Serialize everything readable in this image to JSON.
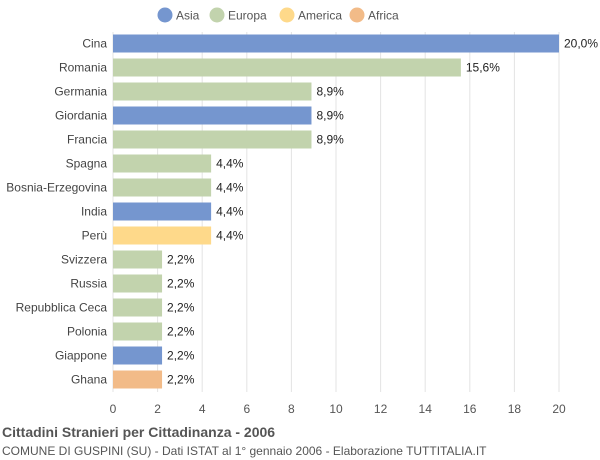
{
  "chart_data": {
    "type": "bar",
    "orientation": "horizontal",
    "title": "Cittadini Stranieri per Cittadinanza - 2006",
    "subtitle": "COMUNE DI GUSPINI (SU) - Dati ISTAT al 1° gennaio 2006 - Elaborazione TUTTITALIA.IT",
    "xlim": [
      0,
      20
    ],
    "xticks": [
      0,
      2,
      4,
      6,
      8,
      10,
      12,
      14,
      16,
      18,
      20
    ],
    "grid": true,
    "legend_position": "top",
    "legend": [
      {
        "name": "Asia",
        "color": "#7596cf"
      },
      {
        "name": "Europa",
        "color": "#c2d3ad"
      },
      {
        "name": "America",
        "color": "#fed98a"
      },
      {
        "name": "Africa",
        "color": "#f2bb88"
      }
    ],
    "bars": [
      {
        "category": "Cina",
        "value": 20.0,
        "label": "20,0%",
        "group": "Asia"
      },
      {
        "category": "Romania",
        "value": 15.6,
        "label": "15,6%",
        "group": "Europa"
      },
      {
        "category": "Germania",
        "value": 8.9,
        "label": "8,9%",
        "group": "Europa"
      },
      {
        "category": "Giordania",
        "value": 8.9,
        "label": "8,9%",
        "group": "Asia"
      },
      {
        "category": "Francia",
        "value": 8.9,
        "label": "8,9%",
        "group": "Europa"
      },
      {
        "category": "Spagna",
        "value": 4.4,
        "label": "4,4%",
        "group": "Europa"
      },
      {
        "category": "Bosnia-Erzegovina",
        "value": 4.4,
        "label": "4,4%",
        "group": "Europa"
      },
      {
        "category": "India",
        "value": 4.4,
        "label": "4,4%",
        "group": "Asia"
      },
      {
        "category": "Perù",
        "value": 4.4,
        "label": "4,4%",
        "group": "America"
      },
      {
        "category": "Svizzera",
        "value": 2.2,
        "label": "2,2%",
        "group": "Europa"
      },
      {
        "category": "Russia",
        "value": 2.2,
        "label": "2,2%",
        "group": "Europa"
      },
      {
        "category": "Repubblica Ceca",
        "value": 2.2,
        "label": "2,2%",
        "group": "Europa"
      },
      {
        "category": "Polonia",
        "value": 2.2,
        "label": "2,2%",
        "group": "Europa"
      },
      {
        "category": "Giappone",
        "value": 2.2,
        "label": "2,2%",
        "group": "Asia"
      },
      {
        "category": "Ghana",
        "value": 2.2,
        "label": "2,2%",
        "group": "Africa"
      }
    ]
  }
}
